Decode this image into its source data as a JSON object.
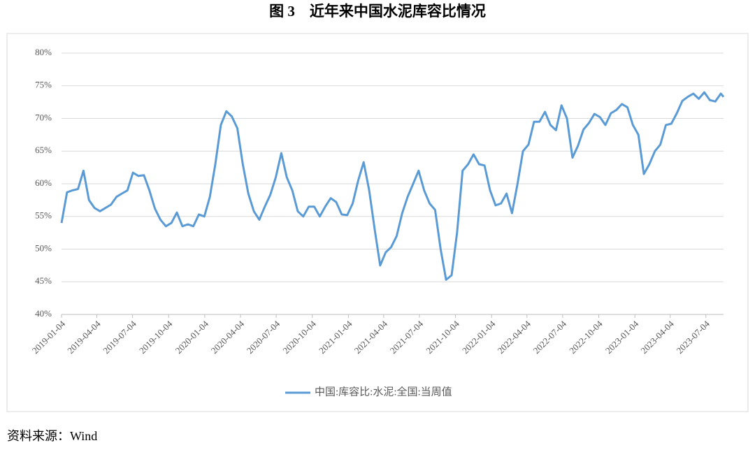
{
  "chart_data": {
    "type": "line",
    "title": "图 3　近年来中国水泥库容比情况",
    "source": "资料来源：Wind",
    "x": [
      "2019-01-04",
      "2019-01-18",
      "2019-02-01",
      "2019-02-15",
      "2019-03-01",
      "2019-03-15",
      "2019-03-29",
      "2019-04-12",
      "2019-04-26",
      "2019-05-10",
      "2019-05-24",
      "2019-06-07",
      "2019-06-21",
      "2019-07-05",
      "2019-07-19",
      "2019-08-02",
      "2019-08-16",
      "2019-08-30",
      "2019-09-13",
      "2019-09-27",
      "2019-10-11",
      "2019-10-25",
      "2019-11-08",
      "2019-11-22",
      "2019-12-06",
      "2019-12-20",
      "2020-01-03",
      "2020-01-17",
      "2020-01-31",
      "2020-02-14",
      "2020-02-28",
      "2020-03-13",
      "2020-03-27",
      "2020-04-10",
      "2020-04-24",
      "2020-05-08",
      "2020-05-22",
      "2020-06-05",
      "2020-06-19",
      "2020-07-03",
      "2020-07-17",
      "2020-07-31",
      "2020-08-14",
      "2020-08-28",
      "2020-09-11",
      "2020-09-25",
      "2020-10-09",
      "2020-10-23",
      "2020-11-06",
      "2020-11-20",
      "2020-12-04",
      "2020-12-18",
      "2021-01-01",
      "2021-01-15",
      "2021-01-29",
      "2021-02-12",
      "2021-02-26",
      "2021-03-12",
      "2021-03-26",
      "2021-04-09",
      "2021-04-23",
      "2021-05-07",
      "2021-05-21",
      "2021-06-04",
      "2021-06-18",
      "2021-07-02",
      "2021-07-16",
      "2021-07-30",
      "2021-08-13",
      "2021-08-27",
      "2021-09-10",
      "2021-09-24",
      "2021-10-08",
      "2021-10-22",
      "2021-11-05",
      "2021-11-19",
      "2021-12-03",
      "2021-12-17",
      "2021-12-31",
      "2022-01-14",
      "2022-01-28",
      "2022-02-11",
      "2022-02-25",
      "2022-03-11",
      "2022-03-25",
      "2022-04-08",
      "2022-04-22",
      "2022-05-06",
      "2022-05-20",
      "2022-06-03",
      "2022-06-17",
      "2022-07-01",
      "2022-07-15",
      "2022-07-29",
      "2022-08-12",
      "2022-08-26",
      "2022-09-09",
      "2022-09-23",
      "2022-10-07",
      "2022-10-21",
      "2022-11-04",
      "2022-11-18",
      "2022-12-02",
      "2022-12-16",
      "2022-12-30",
      "2023-01-13",
      "2023-01-27",
      "2023-02-10",
      "2023-02-24",
      "2023-03-10",
      "2023-03-24",
      "2023-04-07",
      "2023-04-21",
      "2023-05-05",
      "2023-05-19",
      "2023-06-02",
      "2023-06-16",
      "2023-06-30",
      "2023-07-14",
      "2023-07-28",
      "2023-08-11",
      "2023-08-18"
    ],
    "series": [
      {
        "name": "中国:库容比:水泥:全国:当周值",
        "color": "#5b9bd5",
        "values": [
          54,
          58.7,
          59,
          59.2,
          62,
          57.5,
          56.3,
          55.8,
          56.3,
          56.8,
          58,
          58.5,
          59,
          61.7,
          61.2,
          61.3,
          59,
          56.2,
          54.5,
          53.5,
          54,
          55.6,
          53.5,
          53.8,
          53.5,
          55.3,
          55,
          58,
          63,
          69,
          71.1,
          70.3,
          68.5,
          63,
          58.5,
          55.8,
          54.5,
          56.5,
          58.3,
          61,
          64.7,
          61,
          59,
          55.8,
          55,
          56.5,
          56.5,
          55,
          56.5,
          57.8,
          57.2,
          55.3,
          55.2,
          57,
          60.5,
          63.3,
          59,
          53,
          47.5,
          49.5,
          50.3,
          52,
          55.5,
          58,
          60,
          62,
          59,
          57,
          56,
          50,
          45.3,
          46,
          52.5,
          62,
          63,
          64.5,
          63,
          62.8,
          59,
          56.7,
          57,
          58.5,
          55.5,
          60,
          65,
          66,
          69.5,
          69.5,
          71,
          69,
          68.2,
          72,
          70,
          64,
          65.8,
          68.3,
          69.3,
          70.7,
          70.2,
          69,
          70.8,
          71.3,
          72.2,
          71.7,
          69,
          67.5,
          61.5,
          63,
          65,
          66,
          69,
          69.2,
          70.8,
          72.7,
          73.3,
          73.8,
          73,
          74,
          72.8,
          72.6,
          73.8,
          73.3
        ]
      }
    ],
    "xlim": [
      "2019-01-04",
      "2023-08-18"
    ],
    "xticks": [
      "2019-01-04",
      "2019-04-04",
      "2019-07-04",
      "2019-10-04",
      "2020-01-04",
      "2020-04-04",
      "2020-07-04",
      "2020-10-04",
      "2021-01-04",
      "2021-04-04",
      "2021-07-04",
      "2021-10-04",
      "2022-01-04",
      "2022-04-04",
      "2022-07-04",
      "2022-10-04",
      "2023-01-04",
      "2023-04-04",
      "2023-07-04"
    ],
    "ylim": [
      40,
      80
    ],
    "yticks": [
      {
        "value": 40,
        "label": "40%"
      },
      {
        "value": 45,
        "label": "45%"
      },
      {
        "value": 50,
        "label": "50%"
      },
      {
        "value": 55,
        "label": "55%"
      },
      {
        "value": 60,
        "label": "60%"
      },
      {
        "value": 65,
        "label": "65%"
      },
      {
        "value": 70,
        "label": "70%"
      },
      {
        "value": 75,
        "label": "75%"
      },
      {
        "value": 80,
        "label": "80%"
      }
    ],
    "grid": true
  }
}
